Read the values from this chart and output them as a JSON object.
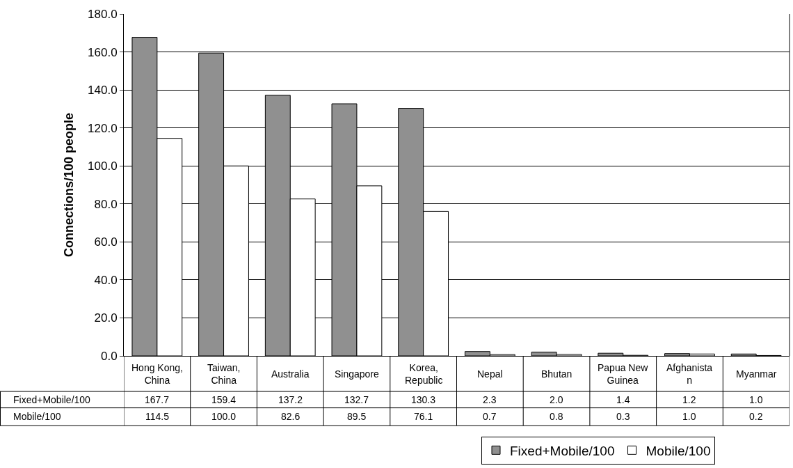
{
  "chart_data": {
    "type": "bar",
    "ylabel": "Connections/100 people",
    "categories": [
      "Hong Kong, China",
      "Taiwan, China",
      "Australia",
      "Singapore",
      "Korea, Republic",
      "Nepal",
      "Bhutan",
      "Papua New Guinea",
      "Afghanistan",
      "Myanmar"
    ],
    "series": [
      {
        "name": "Fixed+Mobile/100",
        "color": "#909090",
        "values": [
          167.7,
          159.4,
          137.2,
          132.7,
          130.3,
          2.3,
          2.0,
          1.4,
          1.2,
          1.0
        ],
        "value_labels": [
          "167.7",
          "159.4",
          "137.2",
          "132.7",
          "130.3",
          "2.3",
          "2.0",
          "1.4",
          "1.2",
          "1.0"
        ]
      },
      {
        "name": "Mobile/100",
        "color": "#ffffff",
        "values": [
          114.5,
          100.0,
          82.6,
          89.5,
          76.1,
          0.7,
          0.8,
          0.3,
          1.0,
          0.2
        ],
        "value_labels": [
          "114.5",
          "100.0",
          "82.6",
          "89.5",
          "76.1",
          "0.7",
          "0.8",
          "0.3",
          "1.0",
          "0.2"
        ]
      }
    ],
    "ylim": [
      0,
      180
    ],
    "yticks": [
      {
        "value": 0,
        "label": "0.0"
      },
      {
        "value": 20,
        "label": "20.0"
      },
      {
        "value": 40,
        "label": "40.0"
      },
      {
        "value": 60,
        "label": "60.0"
      },
      {
        "value": 80,
        "label": "80.0"
      },
      {
        "value": 100,
        "label": "100.0"
      },
      {
        "value": 120,
        "label": "120.0"
      },
      {
        "value": 140,
        "label": "140.0"
      },
      {
        "value": 160,
        "label": "160.0"
      },
      {
        "value": 180,
        "label": "180.0"
      }
    ],
    "grid": "y",
    "legend": "bottom"
  }
}
